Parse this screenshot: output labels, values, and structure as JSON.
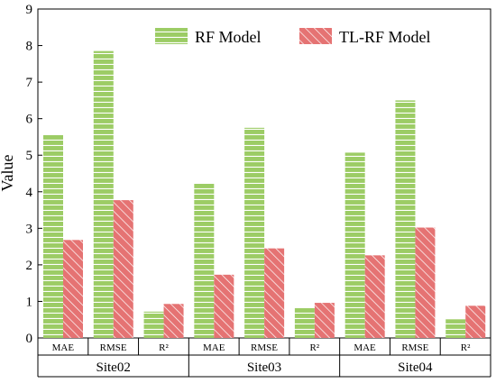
{
  "chart_data": {
    "type": "bar",
    "ylabel": "Value",
    "xlabel": "",
    "ylim": [
      0,
      9
    ],
    "yticks": [
      "0",
      "1",
      "2",
      "3",
      "4",
      "5",
      "6",
      "7",
      "8",
      "9"
    ],
    "groups": [
      {
        "site": "Site02",
        "metrics": [
          "MAE",
          "RMSE",
          "R²"
        ]
      },
      {
        "site": "Site03",
        "metrics": [
          "MAE",
          "RMSE",
          "R²"
        ]
      },
      {
        "site": "Site04",
        "metrics": [
          "MAE",
          "RMSE",
          "R²"
        ]
      }
    ],
    "series": [
      {
        "name": "RF Model",
        "color": "#9ccc65",
        "pattern": "horizontal-stripes",
        "values": [
          5.55,
          7.85,
          0.72,
          4.22,
          5.75,
          0.82,
          5.07,
          6.5,
          0.51
        ]
      },
      {
        "name": "TL-RF Model",
        "color": "#e57373",
        "pattern": "diagonal-hatch",
        "values": [
          2.68,
          3.77,
          0.93,
          1.73,
          2.45,
          0.96,
          2.26,
          3.02,
          0.88
        ]
      }
    ],
    "legend_position": "top-right",
    "grid": false
  }
}
